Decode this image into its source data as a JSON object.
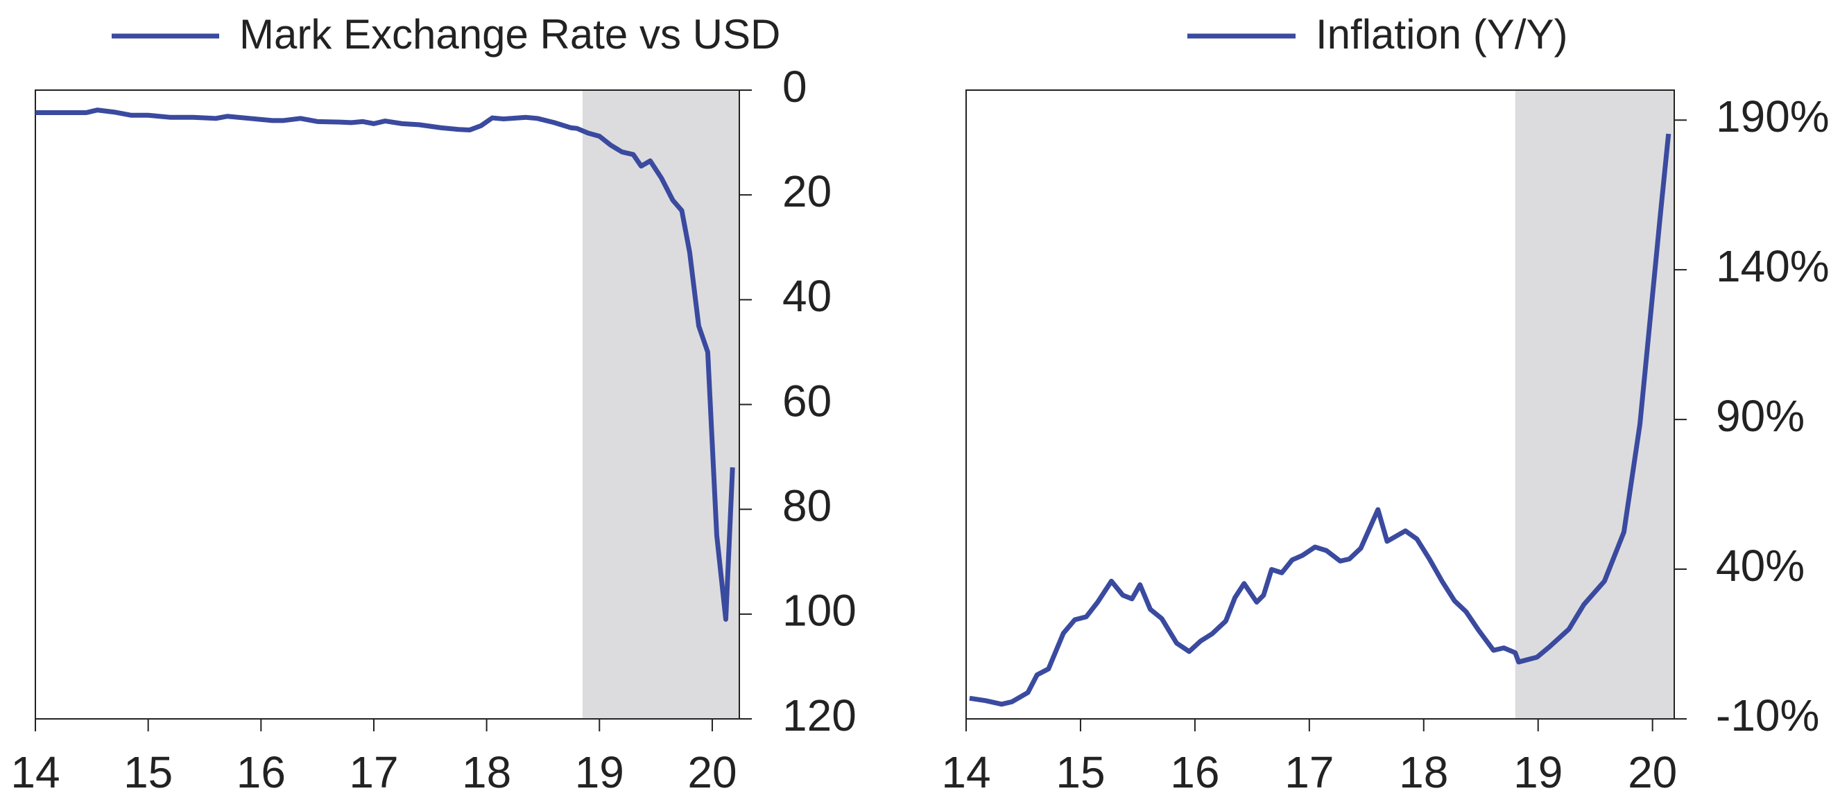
{
  "chart_data": [
    {
      "type": "line",
      "y_inverted": true,
      "y_axis_side": "right",
      "xlim": [
        14,
        20.24
      ],
      "xticks": [
        14,
        15,
        16,
        17,
        18,
        19,
        20
      ],
      "ylim": [
        0,
        120
      ],
      "yticks": [
        0,
        20,
        40,
        60,
        80,
        100,
        120
      ],
      "shade": [
        18.85,
        20.24
      ],
      "shade_color": "#dcdcde",
      "x": [
        14.0,
        14.2,
        14.4,
        14.45,
        14.55,
        14.7,
        14.85,
        15.0,
        15.2,
        15.4,
        15.6,
        15.7,
        15.9,
        16.1,
        16.2,
        16.35,
        16.5,
        16.7,
        16.8,
        16.9,
        17.0,
        17.1,
        17.25,
        17.4,
        17.6,
        17.75,
        17.85,
        17.95,
        18.05,
        18.15,
        18.35,
        18.45,
        18.6,
        18.75,
        18.8,
        18.9,
        19.0,
        19.1,
        19.2,
        19.3,
        19.37,
        19.45,
        19.55,
        19.65,
        19.73,
        19.8,
        19.88,
        19.96,
        20.04,
        20.12,
        20.18
      ],
      "series": [
        {
          "name": "Mark Exchange Rate vs USD",
          "color": "#3a4a9f",
          "values": [
            4.3,
            4.3,
            4.3,
            4.3,
            3.8,
            4.2,
            4.8,
            4.8,
            5.2,
            5.2,
            5.4,
            5.0,
            5.4,
            5.8,
            5.8,
            5.4,
            6.0,
            6.1,
            6.2,
            6.0,
            6.4,
            5.9,
            6.4,
            6.6,
            7.2,
            7.5,
            7.6,
            6.8,
            5.3,
            5.5,
            5.2,
            5.4,
            6.2,
            7.2,
            7.3,
            8.2,
            8.8,
            10.5,
            11.8,
            12.3,
            14.5,
            13.5,
            16.8,
            21,
            23,
            31,
            45,
            50,
            85,
            101,
            72
          ]
        }
      ]
    },
    {
      "type": "line",
      "y_inverted": false,
      "y_axis_side": "right",
      "xlim": [
        14,
        20.19
      ],
      "xticks": [
        14,
        15,
        16,
        17,
        18,
        19,
        20
      ],
      "ylim": [
        -10,
        200
      ],
      "yticks": [
        {
          "value": -10,
          "label": "-10%"
        },
        {
          "value": 40,
          "label": "40%"
        },
        {
          "value": 90,
          "label": "90%"
        },
        {
          "value": 140,
          "label": "140%"
        },
        {
          "value": 190,
          "label": "190%"
        }
      ],
      "shade": [
        18.8,
        20.19
      ],
      "shade_color": "#dcdcde",
      "x": [
        14.03,
        14.17,
        14.31,
        14.4,
        14.54,
        14.62,
        14.72,
        14.85,
        14.95,
        15.05,
        15.15,
        15.27,
        15.37,
        15.45,
        15.52,
        15.61,
        15.71,
        15.84,
        15.95,
        16.05,
        16.15,
        16.27,
        16.35,
        16.43,
        16.54,
        16.6,
        16.67,
        16.76,
        16.85,
        16.94,
        17.05,
        17.15,
        17.27,
        17.35,
        17.45,
        17.6,
        17.68,
        17.84,
        17.94,
        18.05,
        18.16,
        18.27,
        18.37,
        18.48,
        18.61,
        18.7,
        18.8,
        18.83,
        18.99,
        19.1,
        19.27,
        19.4,
        19.58,
        19.75,
        19.89,
        20.07,
        20.14
      ],
      "series": [
        {
          "name": "Inflation (Y/Y)",
          "color": "#3a4a9f",
          "values": [
            -3.1,
            -3.9,
            -5.1,
            -4.3,
            -1.2,
            4.7,
            6.7,
            18.6,
            23.1,
            24.1,
            29.0,
            36.0,
            31.3,
            30.1,
            34.8,
            26.6,
            23.5,
            15.3,
            12.5,
            16.0,
            18.4,
            22.7,
            30.5,
            35.2,
            29.0,
            31.3,
            39.9,
            38.8,
            43.1,
            44.6,
            47.4,
            46.2,
            42.7,
            43.4,
            47.0,
            59.9,
            49.3,
            52.8,
            50.1,
            43.4,
            36.0,
            29.4,
            25.8,
            19.6,
            12.9,
            13.7,
            12.1,
            9.0,
            10.6,
            14.1,
            20.0,
            28.2,
            36.0,
            52.4,
            88.4,
            158.9,
            185.4
          ]
        }
      ]
    }
  ]
}
